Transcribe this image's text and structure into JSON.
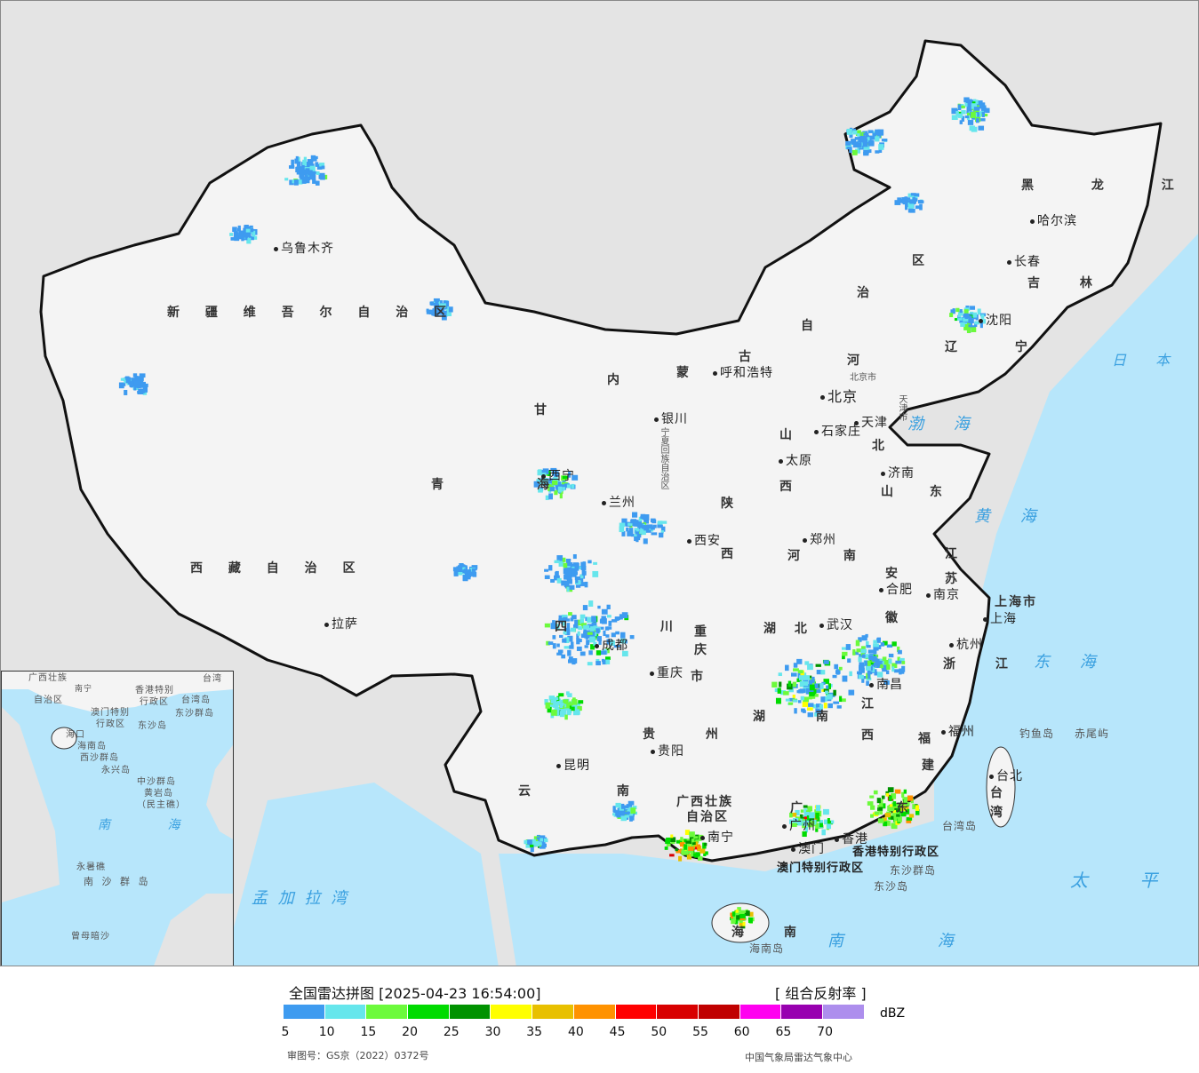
{
  "map": {
    "province_labels": [
      "新 疆 维 吾 尔 自 治 区",
      "西 藏 自 治 区",
      "青 海",
      "甘",
      "内",
      "蒙",
      "古",
      "自",
      "治",
      "区",
      "黑 龙 江",
      "吉 林",
      "辽 宁",
      "河",
      "北",
      "山",
      "西",
      "山 东",
      "陕",
      "西",
      "河 南",
      "江",
      "苏",
      "安",
      "徽",
      "四 川",
      "重 庆",
      "市",
      "湖 北",
      "湖 南",
      "江",
      "西",
      "浙 江",
      "福",
      "建",
      "贵 州",
      "云 南",
      "广西壮族",
      "自治区",
      "广 东",
      "海 南",
      "上海市",
      "台",
      "湾",
      "宁夏回族自治区",
      "天津市",
      "北京市"
    ],
    "city_labels": [
      "乌鲁木齐",
      "拉萨",
      "西宁",
      "兰州",
      "银川",
      "呼和浩特",
      "北京",
      "天津",
      "石家庄",
      "太原",
      "济南",
      "郑州",
      "西安",
      "成都",
      "重庆",
      "武汉",
      "合肥",
      "南京",
      "上海",
      "杭州",
      "南昌",
      "福州",
      "台北",
      "贵阳",
      "昆明",
      "南宁",
      "广州",
      "香港",
      "澳门",
      "沈阳",
      "长春",
      "哈尔滨"
    ],
    "sea_labels": [
      "渤 海",
      "黄 海",
      "东 海",
      "日 本 海",
      "太 平 洋",
      "南 海",
      "孟 加 拉 湾"
    ],
    "other_labels": [
      "香港特别行政区",
      "澳门特别行政区",
      "东沙群岛",
      "东沙岛",
      "台湾岛",
      "海南岛",
      "钓鱼岛",
      "赤尾屿"
    ]
  },
  "inset": {
    "labels": [
      "广西壮族",
      "自治区",
      "南宁",
      "香港特别",
      "行政区",
      "澳门特别",
      "行政区",
      "东沙群岛",
      "东沙岛",
      "台湾岛",
      "台湾",
      "海口",
      "海南岛",
      "西沙群岛",
      "永兴岛",
      "中沙群岛",
      "黄岩岛",
      "（民主礁）",
      "南 海",
      "永暑礁",
      "南 沙 群 岛",
      "曾母暗沙"
    ]
  },
  "legend": {
    "title": "全国雷达拼图 [2025-04-23 16:54:00]",
    "product": "[ 组合反射率 ]",
    "unit": "dBZ",
    "ticks": [
      "5",
      "10",
      "15",
      "20",
      "25",
      "30",
      "35",
      "40",
      "45",
      "50",
      "55",
      "60",
      "65",
      "70"
    ],
    "colors": [
      "#3e9bf0",
      "#66e6ec",
      "#6cfa3c",
      "#00db00",
      "#009200",
      "#ffff00",
      "#e8c000",
      "#ff9200",
      "#ff0000",
      "#d80000",
      "#c00000",
      "#ff00f0",
      "#9800b0",
      "#ad8eed"
    ],
    "approval": "审图号：GS京（2022）0372号",
    "org": "中国气象局雷达气象中心"
  },
  "colors": {
    "land": "#f4f4f4",
    "sea": "#b7e6fb",
    "foreign": "#e4e4e4",
    "border": "#111111"
  }
}
